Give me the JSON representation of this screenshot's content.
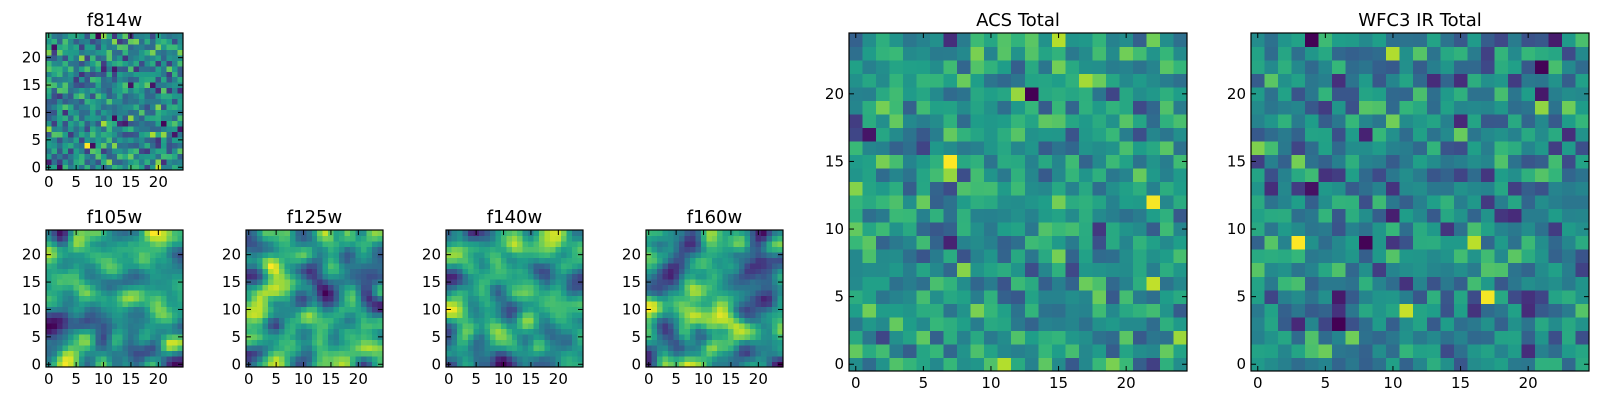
{
  "figure": {
    "description_free": true
  },
  "chart_data": [
    {
      "type": "heatmap",
      "title": "f814w",
      "colormap": "viridis",
      "grid": [
        25,
        25
      ],
      "xlim": [
        -0.5,
        24.5
      ],
      "ylim": [
        -0.5,
        24.5
      ],
      "xticks": [
        0,
        5,
        10,
        15,
        20
      ],
      "yticks": [
        0,
        5,
        10,
        15,
        20
      ],
      "xlabel": "",
      "ylabel": "",
      "pixel_values": "random noise, values not labeled"
    },
    {
      "type": "heatmap",
      "title": "f105w",
      "colormap": "viridis",
      "grid": [
        25,
        25
      ],
      "xlim": [
        -0.5,
        24.5
      ],
      "ylim": [
        -0.5,
        24.5
      ],
      "xticks": [
        0,
        5,
        10,
        15,
        20
      ],
      "yticks": [
        0,
        5,
        10,
        15,
        20
      ],
      "xlabel": "",
      "ylabel": "",
      "pixel_values": "smoothed noise, values not labeled"
    },
    {
      "type": "heatmap",
      "title": "f125w",
      "colormap": "viridis",
      "grid": [
        25,
        25
      ],
      "xlim": [
        -0.5,
        24.5
      ],
      "ylim": [
        -0.5,
        24.5
      ],
      "xticks": [
        0,
        5,
        10,
        15,
        20
      ],
      "yticks": [
        0,
        5,
        10,
        15,
        20
      ],
      "xlabel": "",
      "ylabel": "",
      "pixel_values": "smoothed noise, values not labeled"
    },
    {
      "type": "heatmap",
      "title": "f140w",
      "colormap": "viridis",
      "grid": [
        25,
        25
      ],
      "xlim": [
        -0.5,
        24.5
      ],
      "ylim": [
        -0.5,
        24.5
      ],
      "xticks": [
        0,
        5,
        10,
        15,
        20
      ],
      "yticks": [
        0,
        5,
        10,
        15,
        20
      ],
      "xlabel": "",
      "ylabel": "",
      "pixel_values": "smoothed noise, values not labeled"
    },
    {
      "type": "heatmap",
      "title": "f160w",
      "colormap": "viridis",
      "grid": [
        25,
        25
      ],
      "xlim": [
        -0.5,
        24.5
      ],
      "ylim": [
        -0.5,
        24.5
      ],
      "xticks": [
        0,
        5,
        10,
        15,
        20
      ],
      "yticks": [
        0,
        5,
        10,
        15,
        20
      ],
      "xlabel": "",
      "ylabel": "",
      "pixel_values": "smoothed noise, values not labeled"
    },
    {
      "type": "heatmap",
      "title": "ACS Total",
      "colormap": "viridis",
      "grid": [
        25,
        25
      ],
      "xlim": [
        -0.5,
        24.5
      ],
      "ylim": [
        -0.5,
        24.5
      ],
      "xticks": [
        0,
        5,
        10,
        15,
        20
      ],
      "yticks": [
        0,
        5,
        10,
        15,
        20
      ],
      "xlabel": "",
      "ylabel": "",
      "pixel_values": "random noise, values not labeled"
    },
    {
      "type": "heatmap",
      "title": "WFC3 IR Total",
      "colormap": "viridis",
      "grid": [
        25,
        25
      ],
      "xlim": [
        -0.5,
        24.5
      ],
      "ylim": [
        -0.5,
        24.5
      ],
      "xticks": [
        0,
        5,
        10,
        15,
        20
      ],
      "yticks": [
        0,
        5,
        10,
        15,
        20
      ],
      "xlabel": "",
      "ylabel": "",
      "pixel_values": "random noise, values not labeled"
    }
  ]
}
